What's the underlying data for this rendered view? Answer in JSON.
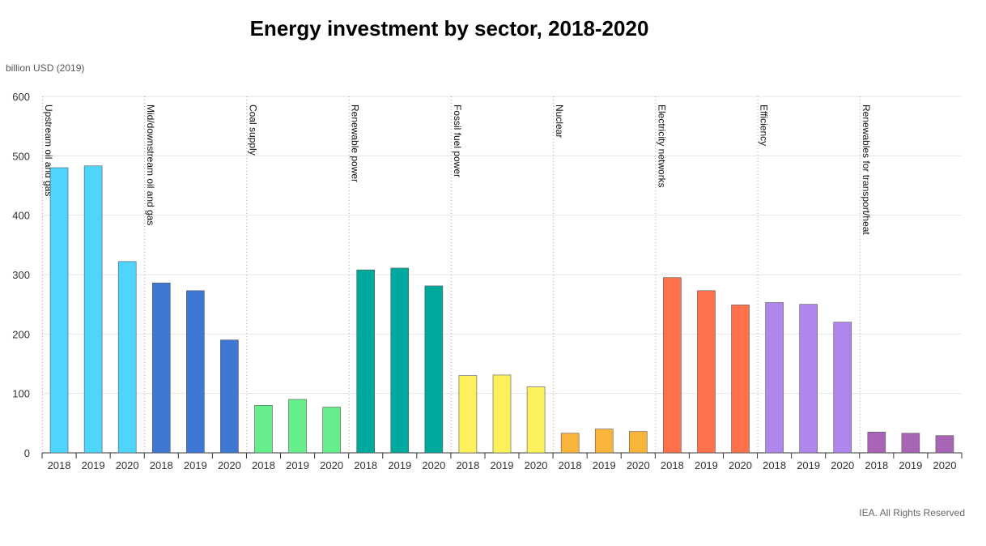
{
  "chart_data": {
    "type": "bar",
    "title": "Energy investment by sector, 2018-2020",
    "ylabel": "billion USD (2019)",
    "ylim": [
      0,
      600
    ],
    "yticks": [
      0,
      100,
      200,
      300,
      400,
      500,
      600
    ],
    "grid": true,
    "years": [
      "2018",
      "2019",
      "2020"
    ],
    "groups": [
      {
        "name": "Upstream oil and gas",
        "color": "#4fd4fc",
        "values": [
          480,
          483,
          322
        ]
      },
      {
        "name": "Mid/downstream oil and gas",
        "color": "#3e78d4",
        "values": [
          286,
          273,
          190
        ]
      },
      {
        "name": "Coal supply",
        "color": "#66ee8c",
        "values": [
          80,
          90,
          77
        ]
      },
      {
        "name": "Renewable power",
        "color": "#00a99d",
        "values": [
          308,
          311,
          281
        ]
      },
      {
        "name": "Fossil fuel power",
        "color": "#fcf15c",
        "values": [
          130,
          131,
          111
        ]
      },
      {
        "name": "Nuclear",
        "color": "#f9b43b",
        "values": [
          33,
          40,
          36
        ]
      },
      {
        "name": "Electricity networks",
        "color": "#fe714b",
        "values": [
          295,
          273,
          249
        ]
      },
      {
        "name": "Efficiency",
        "color": "#af86ec",
        "values": [
          253,
          250,
          220
        ]
      },
      {
        "name": "Renewables for transport/heat",
        "color": "#a865b5",
        "values": [
          35,
          33,
          29
        ]
      }
    ]
  },
  "source": "IEA. All Rights Reserved"
}
